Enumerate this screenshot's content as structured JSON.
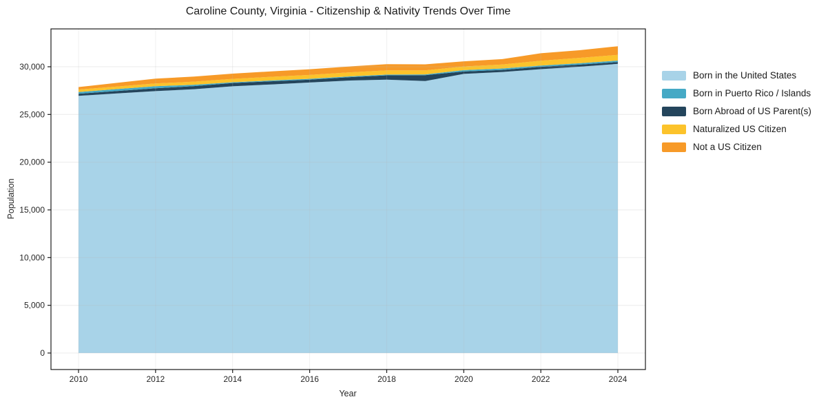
{
  "chart": {
    "title": "Caroline County, Virginia - Citizenship & Nativity Trends Over Time",
    "xlabel": "Year",
    "ylabel": "Population"
  },
  "chart_data": {
    "type": "area",
    "stacked": true,
    "title": "Caroline County, Virginia - Citizenship & Nativity Trends Over Time",
    "xlabel": "Year",
    "ylabel": "Population",
    "grid": true,
    "legend_position": "right-outside",
    "x": [
      2010,
      2011,
      2012,
      2013,
      2014,
      2015,
      2016,
      2017,
      2018,
      2019,
      2020,
      2021,
      2022,
      2023,
      2024
    ],
    "xticks": [
      2010,
      2012,
      2014,
      2016,
      2018,
      2020,
      2022,
      2024
    ],
    "yticks": [
      0,
      5000,
      10000,
      15000,
      20000,
      25000,
      30000
    ],
    "ytick_labels": [
      "0",
      "5,000",
      "10,000",
      "15,000",
      "20,000",
      "25,000",
      "30,000"
    ],
    "xlim": [
      2009.3,
      2024.7
    ],
    "ylim": [
      -2000,
      34000
    ],
    "series": [
      {
        "name": "Born in the United States",
        "color": "#a8d3e8",
        "values": [
          26950,
          27200,
          27450,
          27650,
          27950,
          28150,
          28350,
          28550,
          28650,
          28500,
          29250,
          29450,
          29750,
          30000,
          30300
        ]
      },
      {
        "name": "Born in Puerto Rico / Islands",
        "color": "#45a9c5",
        "values": [
          180,
          200,
          220,
          150,
          80,
          85,
          90,
          85,
          80,
          80,
          150,
          150,
          120,
          150,
          150
        ]
      },
      {
        "name": "Born Abroad of US Parent(s)",
        "color": "#24455c",
        "values": [
          220,
          260,
          290,
          320,
          350,
          330,
          300,
          350,
          450,
          620,
          250,
          220,
          250,
          220,
          200
        ]
      },
      {
        "name": "Naturalized US Citizen",
        "color": "#fcc32b",
        "values": [
          260,
          270,
          290,
          320,
          350,
          380,
          400,
          420,
          440,
          420,
          380,
          420,
          510,
          560,
          600
        ]
      },
      {
        "name": "Not a US Citizen",
        "color": "#f79a28",
        "values": [
          260,
          380,
          510,
          530,
          550,
          570,
          600,
          620,
          650,
          630,
          540,
          560,
          780,
          800,
          900
        ]
      }
    ],
    "stack_order_bottom_to_top": [
      "Born in the United States",
      "Born Abroad of US Parent(s)",
      "Born in Puerto Rico / Islands",
      "Naturalized US Citizen",
      "Not a US Citizen"
    ],
    "colors": {
      "axis": "#1a1a1a",
      "tick_text": "#262626",
      "gridline": "#b8b8b8"
    }
  }
}
